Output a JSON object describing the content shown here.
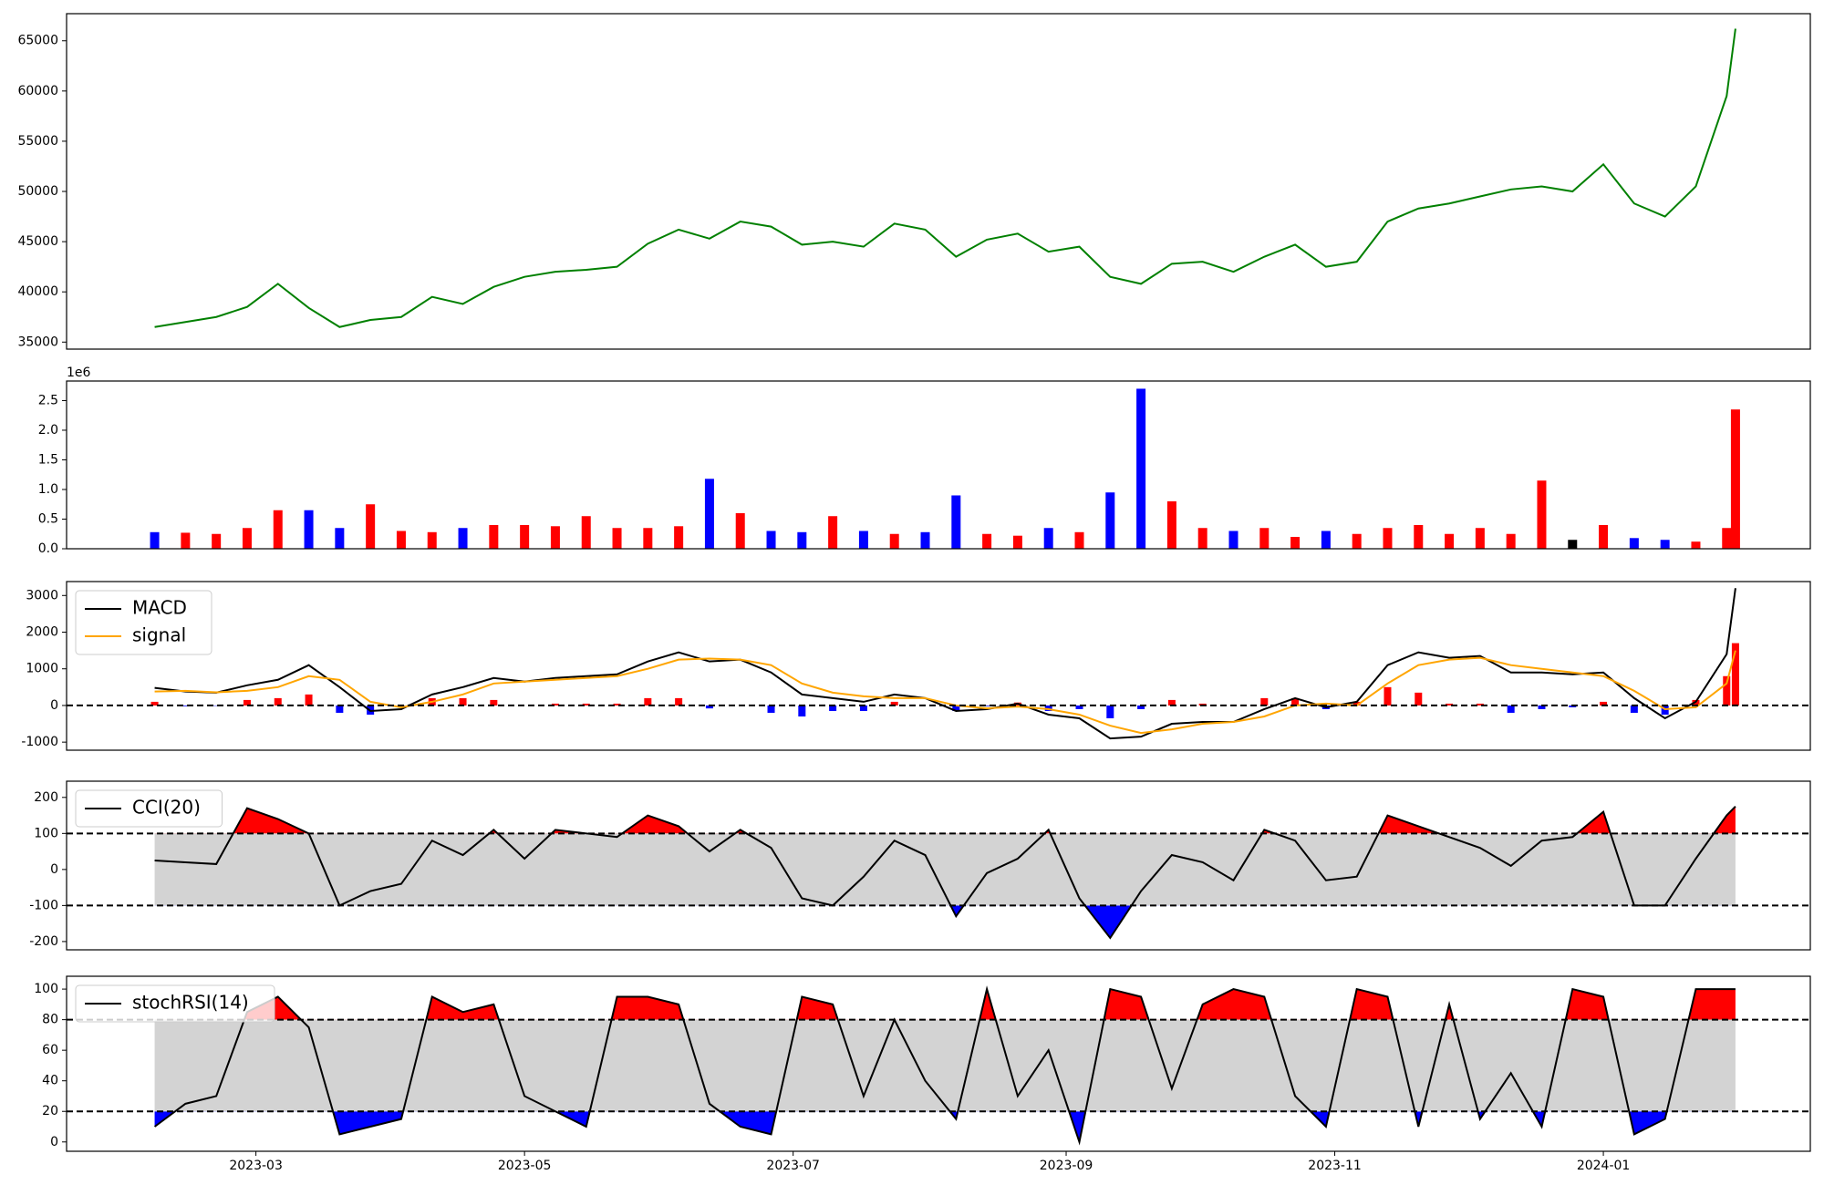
{
  "chart_data": [
    {
      "type": "line",
      "color": "green",
      "x": [
        "2023-02-06",
        "2023-02-13",
        "2023-02-20",
        "2023-02-27",
        "2023-03-06",
        "2023-03-13",
        "2023-03-20",
        "2023-03-27",
        "2023-04-03",
        "2023-04-10",
        "2023-04-17",
        "2023-04-24",
        "2023-05-01",
        "2023-05-08",
        "2023-05-15",
        "2023-05-22",
        "2023-05-29",
        "2023-06-05",
        "2023-06-12",
        "2023-06-19",
        "2023-06-26",
        "2023-07-03",
        "2023-07-10",
        "2023-07-17",
        "2023-07-24",
        "2023-07-31",
        "2023-08-07",
        "2023-08-14",
        "2023-08-21",
        "2023-08-28",
        "2023-09-04",
        "2023-09-11",
        "2023-09-18",
        "2023-09-25",
        "2023-10-02",
        "2023-10-09",
        "2023-10-16",
        "2023-10-23",
        "2023-10-30",
        "2023-11-06",
        "2023-11-13",
        "2023-11-20",
        "2023-11-27",
        "2023-12-04",
        "2023-12-11",
        "2023-12-18",
        "2023-12-25",
        "2024-01-01",
        "2024-01-08",
        "2024-01-15",
        "2024-01-22",
        "2024-01-29",
        "2024-01-31"
      ],
      "values": [
        36500,
        37000,
        37500,
        38500,
        40800,
        38400,
        36500,
        37200,
        37500,
        39500,
        38800,
        40500,
        41500,
        42000,
        42200,
        42500,
        44800,
        46200,
        45300,
        47000,
        46500,
        44700,
        45000,
        44500,
        46800,
        46200,
        43500,
        45200,
        45800,
        44000,
        44500,
        41500,
        40800,
        42800,
        43000,
        42000,
        43500,
        44700,
        42500,
        43000,
        47000,
        48300,
        48800,
        49500,
        50200,
        50500,
        50000,
        52700,
        48800,
        47500,
        50500,
        59500,
        66200
      ],
      "ylim": [
        34300,
        67700
      ],
      "yticks": [
        35000,
        40000,
        45000,
        50000,
        55000,
        60000,
        65000
      ]
    },
    {
      "type": "bar",
      "y_offset_label": "1e6",
      "values": [
        280000,
        270000,
        250000,
        350000,
        650000,
        650000,
        350000,
        750000,
        300000,
        280000,
        350000,
        400000,
        400000,
        380000,
        550000,
        350000,
        350000,
        380000,
        1180000,
        600000,
        300000,
        280000,
        550000,
        300000,
        250000,
        280000,
        900000,
        250000,
        220000,
        350000,
        280000,
        950000,
        2700000,
        800000,
        350000,
        300000,
        350000,
        200000,
        300000,
        250000,
        350000,
        400000,
        250000,
        350000,
        250000,
        1150000,
        150000,
        400000,
        180000,
        150000,
        120000,
        350000,
        2350000
      ],
      "colors": [
        "blue",
        "red",
        "red",
        "red",
        "red",
        "blue",
        "blue",
        "red",
        "red",
        "red",
        "blue",
        "red",
        "red",
        "red",
        "red",
        "red",
        "red",
        "red",
        "blue",
        "red",
        "blue",
        "blue",
        "red",
        "blue",
        "red",
        "blue",
        "blue",
        "red",
        "red",
        "blue",
        "red",
        "blue",
        "blue",
        "red",
        "red",
        "blue",
        "red",
        "red",
        "blue",
        "red",
        "red",
        "red",
        "red",
        "red",
        "red",
        "red",
        "black",
        "red",
        "blue",
        "blue",
        "red",
        "red",
        "red"
      ],
      "ylim": [
        0,
        2830000
      ],
      "yticks": [
        {
          "value": 0,
          "label": "0.0"
        },
        {
          "value": 500000,
          "label": "0.5"
        },
        {
          "value": 1000000,
          "label": "1.0"
        },
        {
          "value": 1500000,
          "label": "1.5"
        },
        {
          "value": 2000000,
          "label": "2.0"
        },
        {
          "value": 2500000,
          "label": "2.5"
        }
      ]
    },
    {
      "type": "line",
      "legend": "upper left",
      "series": [
        {
          "name": "MACD",
          "color": "black",
          "values": [
            480,
            380,
            350,
            550,
            700,
            1100,
            500,
            -150,
            -100,
            300,
            500,
            750,
            650,
            750,
            800,
            850,
            1200,
            1450,
            1200,
            1250,
            900,
            300,
            200,
            100,
            300,
            200,
            -150,
            -100,
            50,
            -250,
            -350,
            -900,
            -850,
            -500,
            -450,
            -450,
            -100,
            200,
            -50,
            100,
            1100,
            1450,
            1300,
            1350,
            900,
            900,
            850,
            900,
            200,
            -350,
            100,
            1400,
            3200
          ]
        },
        {
          "name": "signal",
          "color": "orange",
          "values": [
            380,
            400,
            360,
            400,
            500,
            800,
            700,
            100,
            -50,
            100,
            300,
            600,
            650,
            700,
            750,
            800,
            1000,
            1250,
            1280,
            1250,
            1100,
            600,
            350,
            250,
            200,
            200,
            0,
            -80,
            -30,
            -100,
            -250,
            -550,
            -750,
            -650,
            -500,
            -450,
            -300,
            0,
            50,
            0,
            600,
            1100,
            1250,
            1300,
            1100,
            1000,
            900,
            800,
            400,
            -100,
            -50,
            600,
            1500
          ]
        }
      ],
      "bars": [
        100,
        -20,
        -10,
        150,
        200,
        300,
        -200,
        -250,
        -50,
        200,
        200,
        150,
        0,
        50,
        50,
        50,
        200,
        200,
        -80,
        0,
        -200,
        -300,
        -150,
        -150,
        100,
        0,
        -150,
        -20,
        80,
        -150,
        -100,
        -350,
        -100,
        150,
        50,
        0,
        200,
        200,
        -100,
        100,
        500,
        350,
        50,
        50,
        -200,
        -100,
        -50,
        100,
        -200,
        -250,
        150,
        800,
        1700
      ],
      "bar_colors": [
        "red",
        "blue"
      ],
      "hlines": [
        0
      ],
      "ylim": [
        -1220,
        3380
      ],
      "yticks": [
        -1000,
        0,
        1000,
        2000,
        3000
      ]
    },
    {
      "type": "line",
      "legend": "upper left",
      "series": [
        {
          "name": "CCI(20)",
          "color": "black",
          "values": [
            25,
            20,
            15,
            170,
            140,
            100,
            -100,
            -60,
            -40,
            80,
            40,
            110,
            30,
            110,
            100,
            90,
            150,
            120,
            50,
            110,
            60,
            -80,
            -100,
            -20,
            80,
            40,
            -130,
            -10,
            30,
            110,
            -80,
            -190,
            -60,
            40,
            20,
            -30,
            110,
            80,
            -30,
            -20,
            150,
            120,
            90,
            60,
            10,
            80,
            90,
            160,
            -100,
            -100,
            30,
            150,
            175
          ]
        }
      ],
      "hlines": [
        100,
        -100
      ],
      "fill": {
        "above": "red",
        "between": "lightgray",
        "below": "blue"
      },
      "ylim": [
        -223,
        245
      ],
      "yticks": [
        -200,
        -100,
        0,
        100,
        200
      ]
    },
    {
      "type": "line",
      "legend": "upper left",
      "series": [
        {
          "name": "stochRSI(14)",
          "color": "black",
          "values": [
            10,
            25,
            30,
            85,
            95,
            75,
            5,
            10,
            15,
            95,
            85,
            90,
            30,
            20,
            10,
            95,
            95,
            90,
            25,
            10,
            5,
            95,
            90,
            30,
            80,
            40,
            15,
            100,
            30,
            60,
            0,
            100,
            95,
            35,
            90,
            100,
            95,
            30,
            10,
            100,
            95,
            10,
            90,
            15,
            45,
            10,
            100,
            95,
            5,
            15,
            100,
            100,
            100
          ]
        }
      ],
      "hlines": [
        80,
        20
      ],
      "fill": {
        "above": "red",
        "between": "lightgray",
        "below": "blue"
      },
      "ylim": [
        -6.1,
        108.4
      ],
      "yticks": [
        0,
        20,
        40,
        60,
        80,
        100
      ],
      "xlim": [
        "2023-01-17",
        "2024-02-17"
      ],
      "xticks": [
        {
          "value": "2023-03-01",
          "label": "2023-03"
        },
        {
          "value": "2023-05-01",
          "label": "2023-05"
        },
        {
          "value": "2023-07-01",
          "label": "2023-07"
        },
        {
          "value": "2023-09-01",
          "label": "2023-09"
        },
        {
          "value": "2023-11-01",
          "label": "2023-11"
        },
        {
          "value": "2024-01-01",
          "label": "2024-01"
        }
      ]
    }
  ]
}
